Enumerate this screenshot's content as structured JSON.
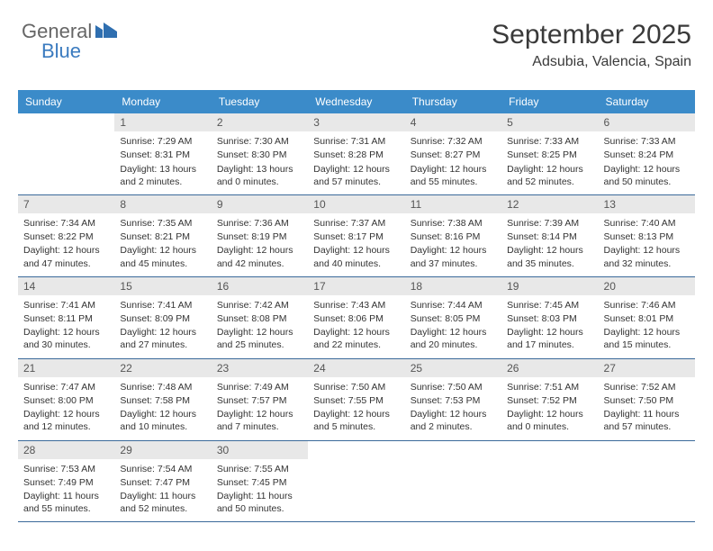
{
  "logo": {
    "part1": "General",
    "part2": "Blue"
  },
  "header": {
    "month_title": "September 2025",
    "location": "Adsubia, Valencia, Spain"
  },
  "colors": {
    "header_bg": "#3b8bc9",
    "header_text": "#ffffff",
    "daynum_bg": "#e8e8e8",
    "week_border": "#3b6a9a",
    "text": "#333333",
    "logo_blue": "#3b7bbf"
  },
  "day_names": [
    "Sunday",
    "Monday",
    "Tuesday",
    "Wednesday",
    "Thursday",
    "Friday",
    "Saturday"
  ],
  "weeks": [
    [
      {
        "num": "",
        "empty": true
      },
      {
        "num": "1",
        "sunrise": "Sunrise: 7:29 AM",
        "sunset": "Sunset: 8:31 PM",
        "daylight": "Daylight: 13 hours and 2 minutes."
      },
      {
        "num": "2",
        "sunrise": "Sunrise: 7:30 AM",
        "sunset": "Sunset: 8:30 PM",
        "daylight": "Daylight: 13 hours and 0 minutes."
      },
      {
        "num": "3",
        "sunrise": "Sunrise: 7:31 AM",
        "sunset": "Sunset: 8:28 PM",
        "daylight": "Daylight: 12 hours and 57 minutes."
      },
      {
        "num": "4",
        "sunrise": "Sunrise: 7:32 AM",
        "sunset": "Sunset: 8:27 PM",
        "daylight": "Daylight: 12 hours and 55 minutes."
      },
      {
        "num": "5",
        "sunrise": "Sunrise: 7:33 AM",
        "sunset": "Sunset: 8:25 PM",
        "daylight": "Daylight: 12 hours and 52 minutes."
      },
      {
        "num": "6",
        "sunrise": "Sunrise: 7:33 AM",
        "sunset": "Sunset: 8:24 PM",
        "daylight": "Daylight: 12 hours and 50 minutes."
      }
    ],
    [
      {
        "num": "7",
        "sunrise": "Sunrise: 7:34 AM",
        "sunset": "Sunset: 8:22 PM",
        "daylight": "Daylight: 12 hours and 47 minutes."
      },
      {
        "num": "8",
        "sunrise": "Sunrise: 7:35 AM",
        "sunset": "Sunset: 8:21 PM",
        "daylight": "Daylight: 12 hours and 45 minutes."
      },
      {
        "num": "9",
        "sunrise": "Sunrise: 7:36 AM",
        "sunset": "Sunset: 8:19 PM",
        "daylight": "Daylight: 12 hours and 42 minutes."
      },
      {
        "num": "10",
        "sunrise": "Sunrise: 7:37 AM",
        "sunset": "Sunset: 8:17 PM",
        "daylight": "Daylight: 12 hours and 40 minutes."
      },
      {
        "num": "11",
        "sunrise": "Sunrise: 7:38 AM",
        "sunset": "Sunset: 8:16 PM",
        "daylight": "Daylight: 12 hours and 37 minutes."
      },
      {
        "num": "12",
        "sunrise": "Sunrise: 7:39 AM",
        "sunset": "Sunset: 8:14 PM",
        "daylight": "Daylight: 12 hours and 35 minutes."
      },
      {
        "num": "13",
        "sunrise": "Sunrise: 7:40 AM",
        "sunset": "Sunset: 8:13 PM",
        "daylight": "Daylight: 12 hours and 32 minutes."
      }
    ],
    [
      {
        "num": "14",
        "sunrise": "Sunrise: 7:41 AM",
        "sunset": "Sunset: 8:11 PM",
        "daylight": "Daylight: 12 hours and 30 minutes."
      },
      {
        "num": "15",
        "sunrise": "Sunrise: 7:41 AM",
        "sunset": "Sunset: 8:09 PM",
        "daylight": "Daylight: 12 hours and 27 minutes."
      },
      {
        "num": "16",
        "sunrise": "Sunrise: 7:42 AM",
        "sunset": "Sunset: 8:08 PM",
        "daylight": "Daylight: 12 hours and 25 minutes."
      },
      {
        "num": "17",
        "sunrise": "Sunrise: 7:43 AM",
        "sunset": "Sunset: 8:06 PM",
        "daylight": "Daylight: 12 hours and 22 minutes."
      },
      {
        "num": "18",
        "sunrise": "Sunrise: 7:44 AM",
        "sunset": "Sunset: 8:05 PM",
        "daylight": "Daylight: 12 hours and 20 minutes."
      },
      {
        "num": "19",
        "sunrise": "Sunrise: 7:45 AM",
        "sunset": "Sunset: 8:03 PM",
        "daylight": "Daylight: 12 hours and 17 minutes."
      },
      {
        "num": "20",
        "sunrise": "Sunrise: 7:46 AM",
        "sunset": "Sunset: 8:01 PM",
        "daylight": "Daylight: 12 hours and 15 minutes."
      }
    ],
    [
      {
        "num": "21",
        "sunrise": "Sunrise: 7:47 AM",
        "sunset": "Sunset: 8:00 PM",
        "daylight": "Daylight: 12 hours and 12 minutes."
      },
      {
        "num": "22",
        "sunrise": "Sunrise: 7:48 AM",
        "sunset": "Sunset: 7:58 PM",
        "daylight": "Daylight: 12 hours and 10 minutes."
      },
      {
        "num": "23",
        "sunrise": "Sunrise: 7:49 AM",
        "sunset": "Sunset: 7:57 PM",
        "daylight": "Daylight: 12 hours and 7 minutes."
      },
      {
        "num": "24",
        "sunrise": "Sunrise: 7:50 AM",
        "sunset": "Sunset: 7:55 PM",
        "daylight": "Daylight: 12 hours and 5 minutes."
      },
      {
        "num": "25",
        "sunrise": "Sunrise: 7:50 AM",
        "sunset": "Sunset: 7:53 PM",
        "daylight": "Daylight: 12 hours and 2 minutes."
      },
      {
        "num": "26",
        "sunrise": "Sunrise: 7:51 AM",
        "sunset": "Sunset: 7:52 PM",
        "daylight": "Daylight: 12 hours and 0 minutes."
      },
      {
        "num": "27",
        "sunrise": "Sunrise: 7:52 AM",
        "sunset": "Sunset: 7:50 PM",
        "daylight": "Daylight: 11 hours and 57 minutes."
      }
    ],
    [
      {
        "num": "28",
        "sunrise": "Sunrise: 7:53 AM",
        "sunset": "Sunset: 7:49 PM",
        "daylight": "Daylight: 11 hours and 55 minutes."
      },
      {
        "num": "29",
        "sunrise": "Sunrise: 7:54 AM",
        "sunset": "Sunset: 7:47 PM",
        "daylight": "Daylight: 11 hours and 52 minutes."
      },
      {
        "num": "30",
        "sunrise": "Sunrise: 7:55 AM",
        "sunset": "Sunset: 7:45 PM",
        "daylight": "Daylight: 11 hours and 50 minutes."
      },
      {
        "num": "",
        "empty": true
      },
      {
        "num": "",
        "empty": true
      },
      {
        "num": "",
        "empty": true
      },
      {
        "num": "",
        "empty": true
      }
    ]
  ]
}
